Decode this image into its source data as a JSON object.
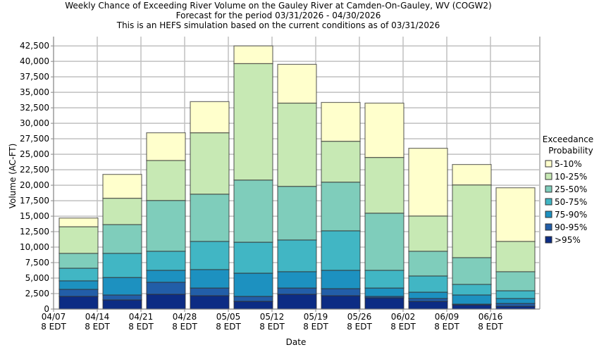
{
  "chart_data": {
    "type": "bar",
    "stacked": true,
    "title": [
      "Weekly Chance of Exceeding River Volume on the Gauley River at Camden-On-Gauley, WV (COGW2)",
      "Forecast for the period 03/31/2026 - 04/30/2026",
      "This is an HEFS simulation based on the current conditions as of 03/31/2026"
    ],
    "xlabel": "Date",
    "ylabel": "Volume (AC-FT)",
    "ylim": [
      0,
      44000
    ],
    "yticks": [
      "0",
      "2,500",
      "5,000",
      "7,500",
      "10,000",
      "12,500",
      "15,000",
      "17,500",
      "20,000",
      "22,500",
      "25,000",
      "27,500",
      "30,000",
      "32,500",
      "35,000",
      "37,500",
      "40,000",
      "42,500"
    ],
    "xticks": [
      [
        "04/07",
        "8 EDT"
      ],
      [
        "04/14",
        "8 EDT"
      ],
      [
        "04/21",
        "8 EDT"
      ],
      [
        "04/28",
        "8 EDT"
      ],
      [
        "05/05",
        "8 EDT"
      ],
      [
        "05/12",
        "8 EDT"
      ],
      [
        "05/19",
        "8 EDT"
      ],
      [
        "05/26",
        "8 EDT"
      ],
      [
        "06/02",
        "8 EDT"
      ],
      [
        "06/09",
        "8 EDT"
      ],
      [
        "06/16",
        "8 EDT"
      ]
    ],
    "legend_title": [
      "Exceedance",
      "Probability"
    ],
    "legend_placement": "right",
    "series": [
      {
        "name": ">95%",
        "color": "#0c2c84",
        "cumulative_top": [
          2050,
          1480,
          2390,
          2160,
          1250,
          2390,
          2160,
          1820,
          1250,
          680,
          455
        ]
      },
      {
        "name": "90-95%",
        "color": "#225ea8",
        "cumulative_top": [
          3190,
          2280,
          4330,
          3400,
          2050,
          3400,
          3300,
          2050,
          1710,
          800,
          910
        ]
      },
      {
        "name": "75-90%",
        "color": "#1d91c0",
        "cumulative_top": [
          4560,
          5100,
          6260,
          6380,
          5800,
          6040,
          6260,
          3400,
          2730,
          2280,
          1710
        ]
      },
      {
        "name": "50-75%",
        "color": "#41b6c4",
        "cumulative_top": [
          6600,
          9000,
          9340,
          10930,
          10800,
          11160,
          12640,
          6260,
          5350,
          3990,
          2960
        ]
      },
      {
        "name": "25-50%",
        "color": "#7fcdbb",
        "cumulative_top": [
          9000,
          13650,
          17540,
          18560,
          20840,
          19820,
          20500,
          15490,
          9340,
          8310,
          6040
        ]
      },
      {
        "name": "10-25%",
        "color": "#c7e9b4",
        "cumulative_top": [
          13300,
          17900,
          24000,
          28470,
          39640,
          33260,
          27100,
          24490,
          15030,
          20050,
          10930
        ]
      },
      {
        "name": "5-10%",
        "color": "#ffffcc",
        "cumulative_top": [
          14700,
          21750,
          28470,
          33500,
          42500,
          39520,
          33370,
          33260,
          25970,
          23350,
          19590
        ]
      }
    ],
    "legend_order": [
      6,
      5,
      4,
      3,
      2,
      1,
      0
    ]
  }
}
